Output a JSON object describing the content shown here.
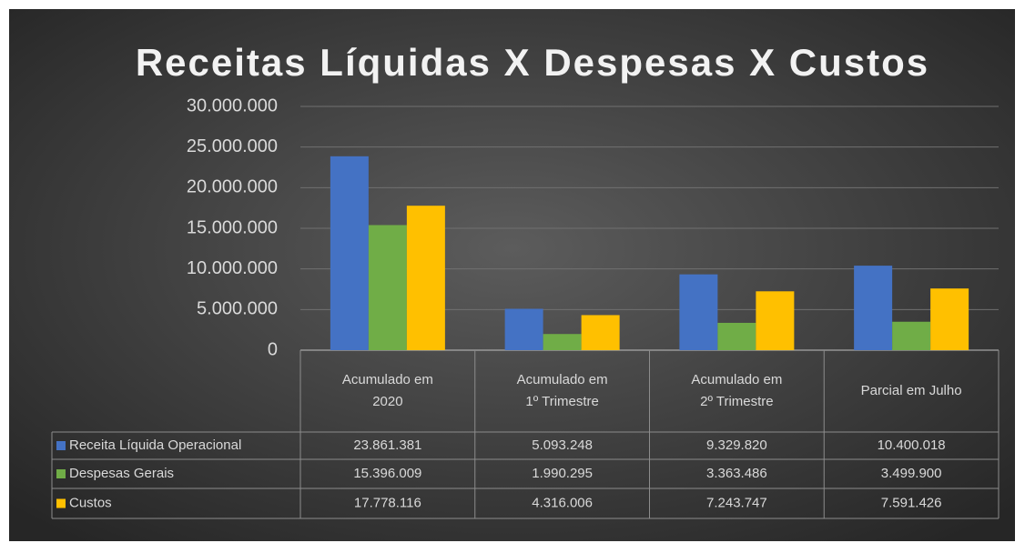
{
  "chart_data": {
    "type": "bar",
    "title": "Receitas Líquidas X Despesas X Custos",
    "categories": [
      "Acumulado em 2020",
      "Acumulado em 1º Trimestre",
      "Acumulado em 2º Trimestre",
      "Parcial em Julho"
    ],
    "series": [
      {
        "name": "Receita Líquida Operacional",
        "color": "#4472c4",
        "values": [
          23861381,
          5093248,
          9329820,
          10400018
        ],
        "value_labels": [
          "23.861.381",
          "5.093.248",
          "9.329.820",
          "10.400.018"
        ]
      },
      {
        "name": "Despesas Gerais",
        "color": "#70ad47",
        "values": [
          15396009,
          1990295,
          3363486,
          3499900
        ],
        "value_labels": [
          "15.396.009",
          "1.990.295",
          "3.363.486",
          "3.499.900"
        ]
      },
      {
        "name": "Custos",
        "color": "#ffc000",
        "values": [
          17778116,
          4316006,
          7243747,
          7591426
        ],
        "value_labels": [
          "17.778.116",
          "4.316.006",
          "7.243.747",
          "7.591.426"
        ]
      }
    ],
    "ylim": [
      0,
      30000000
    ],
    "yticks": [
      0,
      {
        "value": 5000000,
        "label": "5.000.000"
      },
      {
        "value": 10000000,
        "label": "10.000.000"
      },
      {
        "value": 15000000,
        "label": "15.000.000"
      },
      {
        "value": 20000000,
        "label": "20.000.000"
      },
      {
        "value": 25000000,
        "label": "25.000.000"
      },
      {
        "value": 30000000,
        "label": "30.000.000"
      }
    ],
    "grid": true
  }
}
